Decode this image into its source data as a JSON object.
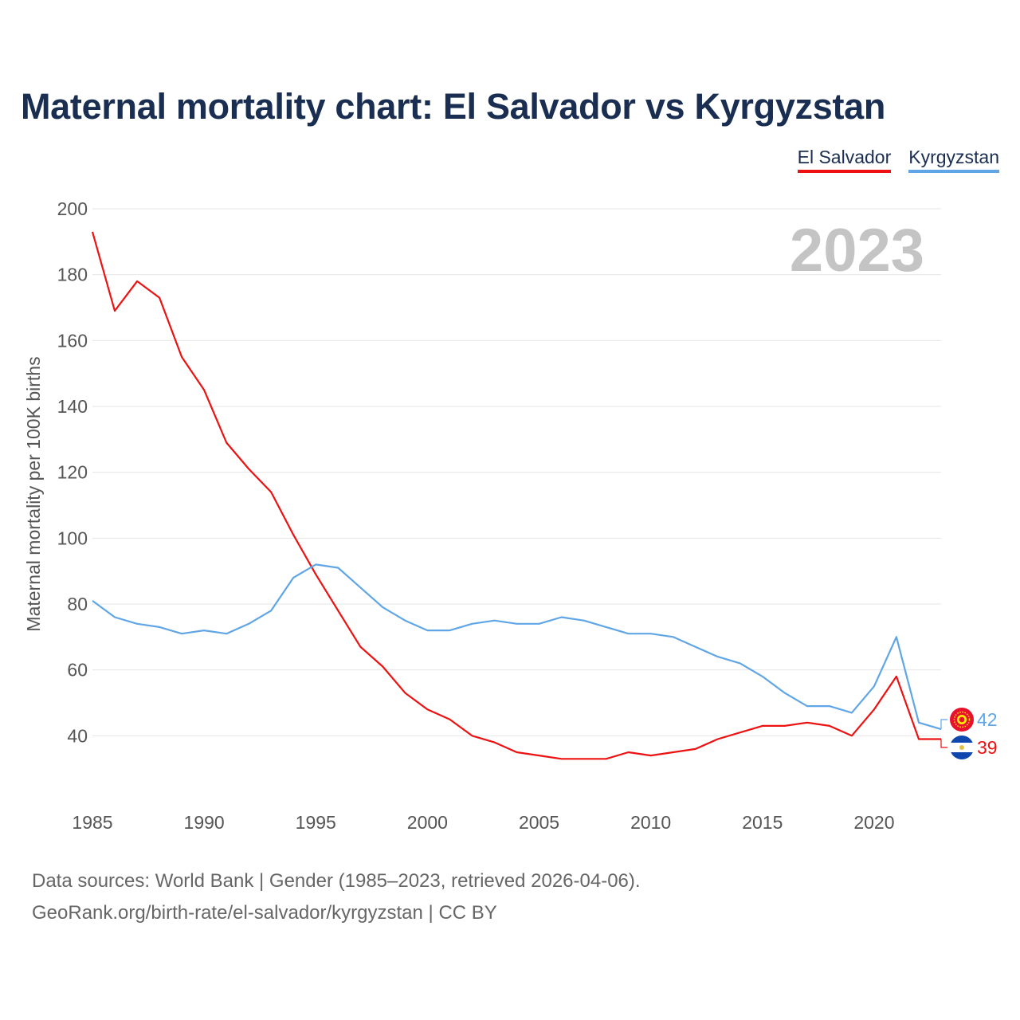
{
  "title": "Maternal mortality chart: El Salvador vs Kyrgyzstan",
  "legend": [
    {
      "label": "El Salvador",
      "color": "#ee1111"
    },
    {
      "label": "Kyrgyzstan",
      "color": "#60a6e6"
    }
  ],
  "year_label": "2023",
  "footer": {
    "line1": "Data sources: World Bank | Gender (1985–2023, retrieved 2026-04-06).",
    "line2": "GeoRank.org/birth-rate/el-salvador/kyrgyzstan | CC BY"
  },
  "chart_data": {
    "type": "line",
    "title": "Maternal mortality chart: El Salvador vs Kyrgyzstan",
    "xlabel": "",
    "ylabel": "Maternal mortality per 100K births",
    "x": [
      1985,
      1986,
      1987,
      1988,
      1989,
      1990,
      1991,
      1992,
      1993,
      1994,
      1995,
      1996,
      1997,
      1998,
      1999,
      2000,
      2001,
      2002,
      2003,
      2004,
      2005,
      2006,
      2007,
      2008,
      2009,
      2010,
      2011,
      2012,
      2013,
      2014,
      2015,
      2016,
      2017,
      2018,
      2019,
      2020,
      2021,
      2022,
      2023
    ],
    "xlim": [
      1985,
      2023
    ],
    "ylim": [
      20,
      200
    ],
    "x_ticks": [
      1985,
      1990,
      1995,
      2000,
      2005,
      2010,
      2015,
      2020
    ],
    "y_ticks": [
      40,
      60,
      80,
      100,
      120,
      140,
      160,
      180,
      200
    ],
    "grid": true,
    "legend_position": "top-right",
    "series": [
      {
        "name": "El Salvador",
        "color": "#ee1111",
        "values": [
          193,
          169,
          178,
          173,
          155,
          145,
          129,
          121,
          114,
          101,
          89,
          78,
          67,
          61,
          53,
          48,
          45,
          40,
          38,
          35,
          34,
          33,
          33,
          33,
          35,
          34,
          35,
          36,
          39,
          41,
          43,
          43,
          44,
          43,
          40,
          48,
          58,
          39,
          39
        ],
        "end_label": "39"
      },
      {
        "name": "Kyrgyzstan",
        "color": "#60a6e6",
        "values": [
          81,
          76,
          74,
          73,
          71,
          72,
          71,
          74,
          78,
          88,
          92,
          91,
          85,
          79,
          75,
          72,
          72,
          74,
          75,
          74,
          74,
          76,
          75,
          73,
          71,
          71,
          70,
          67,
          64,
          62,
          58,
          53,
          49,
          49,
          47,
          55,
          70,
          44,
          42
        ],
        "end_label": "42"
      }
    ]
  }
}
